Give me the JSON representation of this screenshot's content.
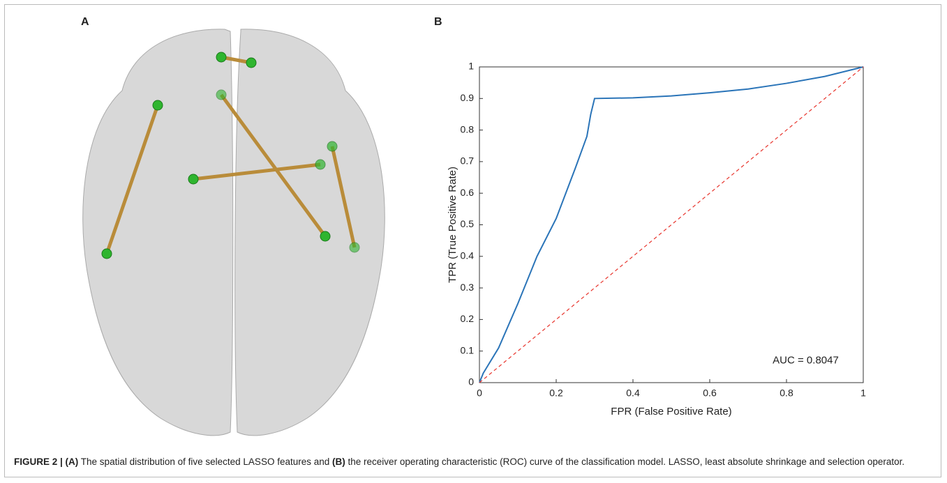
{
  "panels": {
    "a_label": "A",
    "b_label": "B"
  },
  "caption": {
    "lead": "FIGURE 2 | (A)",
    "text_a": "The spatial distribution of five selected LASSO features and",
    "lead_b": "(B)",
    "text_b": "the receiver operating characteristic (ROC) curve of the classification model. LASSO, least absolute shrinkage and selection operator."
  },
  "chart_data": {
    "type": "line",
    "xlabel": "FPR (False Positive Rate)",
    "ylabel": "TPR (True Positive Rate)",
    "annotation": "AUC = 0.8047",
    "xlim": [
      0,
      1
    ],
    "xticks": [
      0,
      0.2,
      0.4,
      0.6,
      0.8,
      1
    ],
    "ylim": [
      0,
      1
    ],
    "yticks": [
      0,
      0.1,
      0.2,
      0.3,
      0.4,
      0.5,
      0.6,
      0.7,
      0.8,
      0.9,
      1
    ],
    "grid": false,
    "series": [
      {
        "color": "#2a74b8",
        "linestyle": "solid",
        "x": [
          0,
          0.01,
          0.05,
          0.1,
          0.15,
          0.2,
          0.25,
          0.28,
          0.29,
          0.3,
          0.4,
          0.5,
          0.6,
          0.7,
          0.8,
          0.9,
          1
        ],
        "values": [
          0,
          0.03,
          0.11,
          0.25,
          0.4,
          0.52,
          0.68,
          0.78,
          0.85,
          0.9,
          0.902,
          0.908,
          0.918,
          0.93,
          0.948,
          0.97,
          1
        ]
      },
      {
        "color": "#e8342c",
        "linestyle": "dashed",
        "x": [
          0,
          1
        ],
        "values": [
          0,
          1
        ]
      }
    ]
  }
}
